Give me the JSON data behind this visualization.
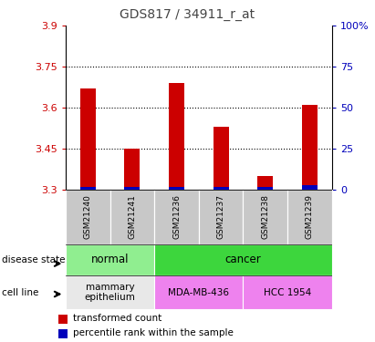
{
  "title": "GDS817 / 34911_r_at",
  "samples": [
    "GSM21240",
    "GSM21241",
    "GSM21236",
    "GSM21237",
    "GSM21238",
    "GSM21239"
  ],
  "red_values": [
    3.67,
    3.45,
    3.69,
    3.53,
    3.35,
    3.61
  ],
  "blue_values_pct": [
    2,
    2,
    2,
    2,
    2,
    3
  ],
  "ylim": [
    3.3,
    3.9
  ],
  "yticks": [
    3.3,
    3.45,
    3.6,
    3.75,
    3.9
  ],
  "right_yticks": [
    0,
    25,
    50,
    75,
    100
  ],
  "right_ylim": [
    0,
    100
  ],
  "right_yticklabels": [
    "0",
    "25",
    "50",
    "75",
    "100%"
  ],
  "grid_lines": [
    3.45,
    3.6,
    3.75
  ],
  "disease_state": [
    {
      "label": "normal",
      "start": 0,
      "end": 2,
      "color": "#90EE90"
    },
    {
      "label": "cancer",
      "start": 2,
      "end": 6,
      "color": "#3DD63D"
    }
  ],
  "cell_line": [
    {
      "label": "mammary\nepithelium",
      "start": 0,
      "end": 2,
      "color": "#E8E8E8"
    },
    {
      "label": "MDA-MB-436",
      "start": 2,
      "end": 4,
      "color": "#EE82EE"
    },
    {
      "label": "HCC 1954",
      "start": 4,
      "end": 6,
      "color": "#EE82EE"
    }
  ],
  "bar_color": "#CC0000",
  "blue_bar_color": "#0000BB",
  "label_area_bg": "#C8C8C8",
  "legend_red_label": "transformed count",
  "legend_blue_label": "percentile rank within the sample",
  "title_color": "#444444",
  "left_tick_color": "#CC0000",
  "right_tick_color": "#0000BB",
  "bar_width": 0.35
}
